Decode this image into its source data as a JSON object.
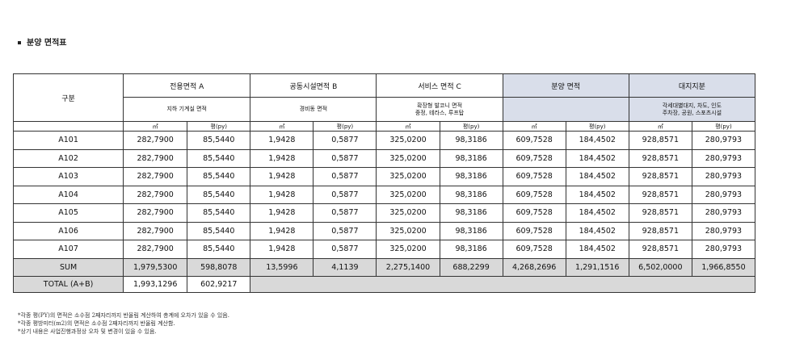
{
  "title": "분양 면적표",
  "headers": {
    "group": "구분",
    "cols": [
      {
        "name": "전용면적 A",
        "sub": "지하 기계실 면적",
        "blue": false
      },
      {
        "name": "공동시설면적 B",
        "sub": "경비동 면적",
        "blue": false
      },
      {
        "name": "서비스 면적 C",
        "sub": "확장형 발코니 면적\n중정, 테라스, 루프탑",
        "blue": false
      },
      {
        "name": "분양 면적",
        "sub": "",
        "blue": true
      },
      {
        "name": "대지지분",
        "sub": "각세대별대지, 차도, 인도\n주차장, 공원, 스포츠시설",
        "blue": true
      }
    ],
    "unit_m2": "㎡",
    "unit_py": "평(py)"
  },
  "rows": [
    {
      "label": "A101",
      "values": [
        "282,7900",
        "85,5440",
        "1,9428",
        "0,5877",
        "325,0200",
        "98,3186",
        "609,7528",
        "184,4502",
        "928,8571",
        "280,9793"
      ]
    },
    {
      "label": "A102",
      "values": [
        "282,7900",
        "85,5440",
        "1,9428",
        "0,5877",
        "325,0200",
        "98,3186",
        "609,7528",
        "184,4502",
        "928,8571",
        "280,9793"
      ]
    },
    {
      "label": "A103",
      "values": [
        "282,7900",
        "85,5440",
        "1,9428",
        "0,5877",
        "325,0200",
        "98,3186",
        "609,7528",
        "184,4502",
        "928,8571",
        "280,9793"
      ]
    },
    {
      "label": "A104",
      "values": [
        "282,7900",
        "85,5440",
        "1,9428",
        "0,5877",
        "325,0200",
        "98,3186",
        "609,7528",
        "184,4502",
        "928,8571",
        "280,9793"
      ]
    },
    {
      "label": "A105",
      "values": [
        "282,7900",
        "85,5440",
        "1,9428",
        "0,5877",
        "325,0200",
        "98,3186",
        "609,7528",
        "184,4502",
        "928,8571",
        "280,9793"
      ]
    },
    {
      "label": "A106",
      "values": [
        "282,7900",
        "85,5440",
        "1,9428",
        "0,5877",
        "325,0200",
        "98,3186",
        "609,7528",
        "184,4502",
        "928,8571",
        "280,9793"
      ]
    },
    {
      "label": "A107",
      "values": [
        "282,7900",
        "85,5440",
        "1,9428",
        "0,5877",
        "325,0200",
        "98,3186",
        "609,7528",
        "184,4502",
        "928,8571",
        "280,9793"
      ]
    }
  ],
  "sum": {
    "label": "SUM",
    "values": [
      "1,979,5300",
      "598,8078",
      "13,5996",
      "4,1139",
      "2,275,1400",
      "688,2299",
      "4,268,2696",
      "1,291,1516",
      "6,502,0000",
      "1,966,8550"
    ]
  },
  "total": {
    "label": "TOTAL  (A+B)",
    "values": [
      "1,993,1296",
      "602,9217"
    ]
  },
  "notes": [
    "*각종 평(PY)의 면적은 소수점 2째자리까지 반올림 계산하여 총계에 오차가 있을 수 있음.",
    "*각종 평방미터(m2)의 면적은 소수점 2째자리까지 반올림 계산함.",
    "*상기 내용은 사업진행과정상 오차 및 변경이 있을 수 있음."
  ],
  "colors": {
    "blue_header": "#d9deea",
    "gray_row": "#d9d9d9",
    "border": "#333333"
  }
}
